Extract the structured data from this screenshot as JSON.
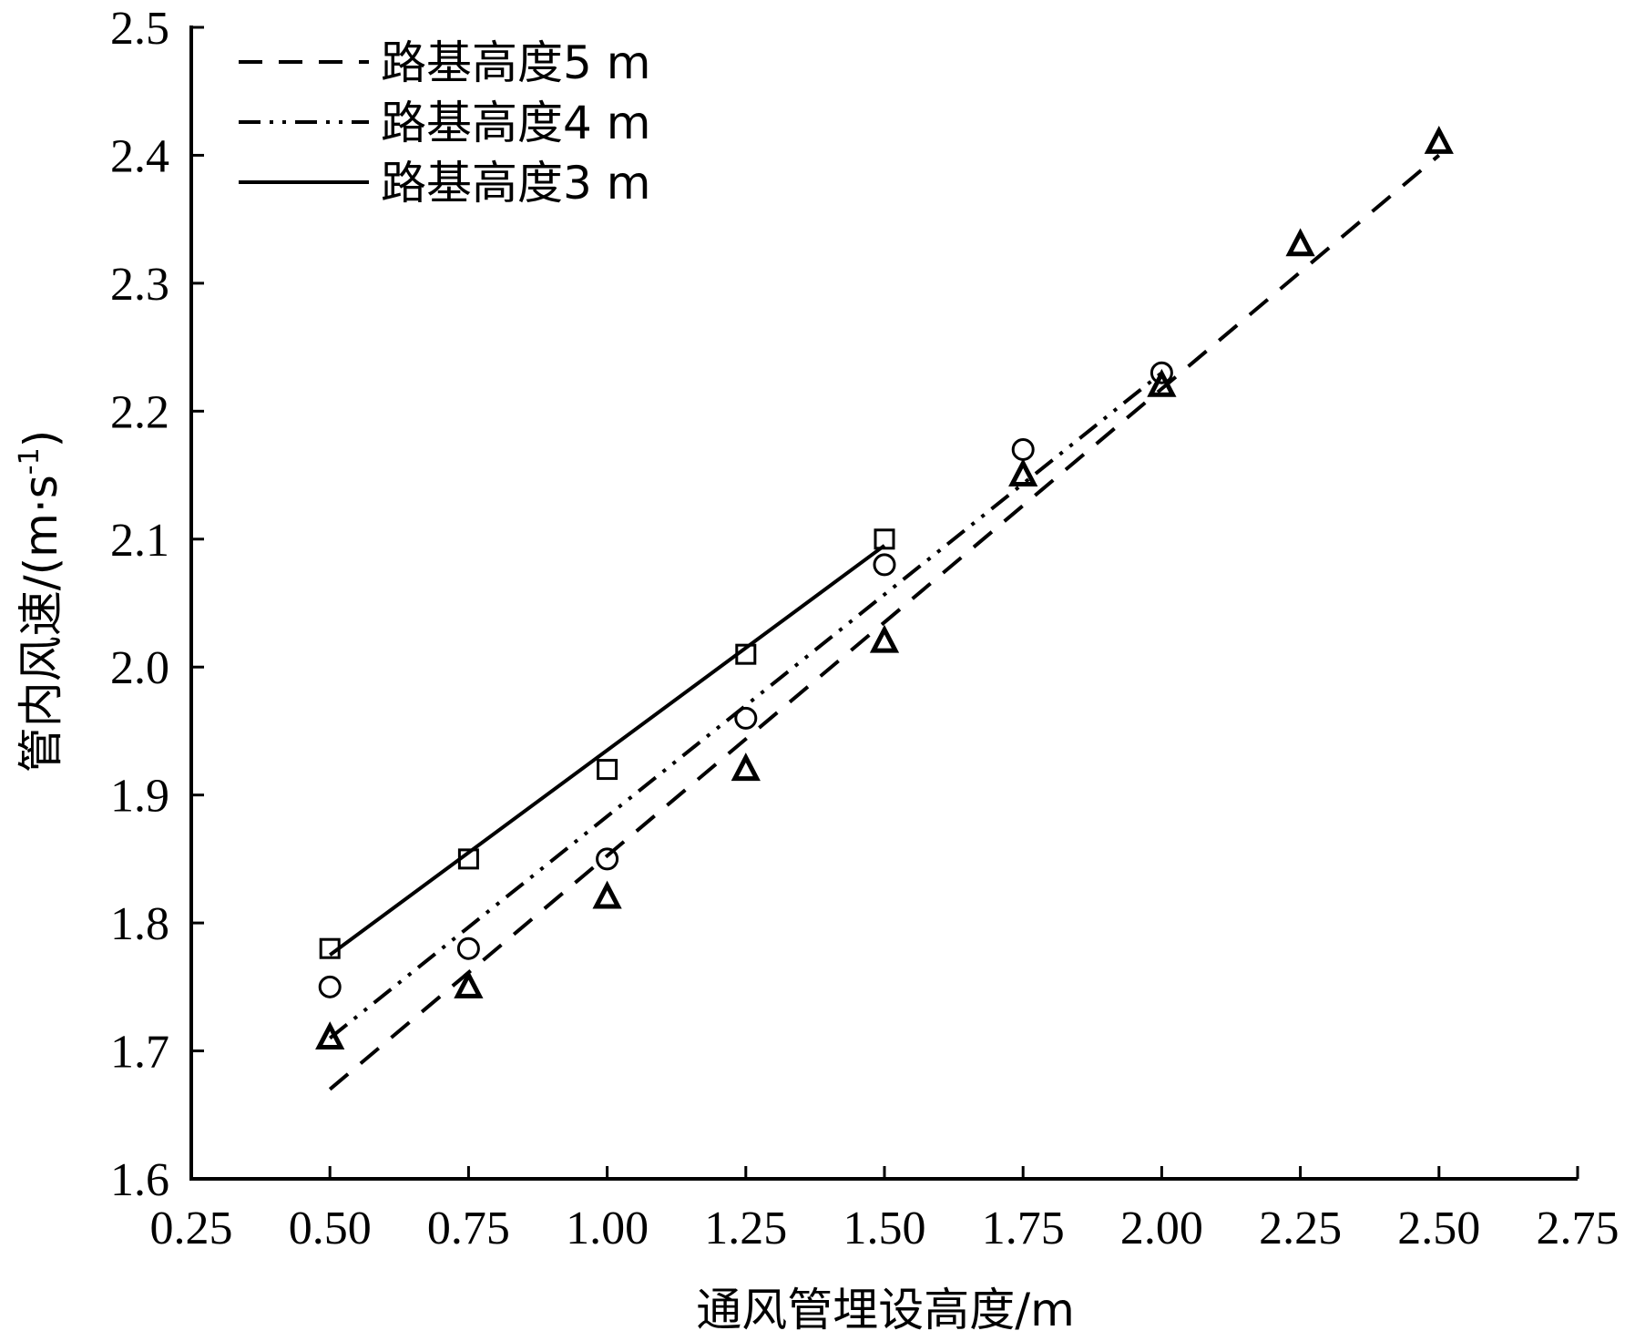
{
  "chart_data": {
    "type": "scatter",
    "xlabel": "通风管埋设高度/m",
    "ylabel": "管内风速/(m·s",
    "ylabel_sup": "-1",
    "ylabel_end": ")",
    "xlim": [
      0.25,
      2.75
    ],
    "ylim": [
      1.6,
      2.5
    ],
    "x_ticks": [
      "0.25",
      "0.50",
      "0.75",
      "1.00",
      "1.25",
      "1.50",
      "1.75",
      "2.00",
      "2.25",
      "2.50",
      "2.75"
    ],
    "y_ticks": [
      "1.6",
      "1.7",
      "1.8",
      "1.9",
      "2.0",
      "2.1",
      "2.2",
      "2.3",
      "2.4",
      "2.5"
    ],
    "grid": false,
    "legend_position": "top-left",
    "series": [
      {
        "name": "路基高度5 m",
        "line_style": "dashed",
        "marker": "triangle",
        "x": [
          0.5,
          0.75,
          1.0,
          1.25,
          1.5,
          1.75,
          2.0,
          2.25,
          2.5
        ],
        "y": [
          1.71,
          1.75,
          1.82,
          1.92,
          2.02,
          2.15,
          2.22,
          2.33,
          2.41
        ],
        "fit": [
          [
            0.5,
            1.67
          ],
          [
            2.5,
            2.4
          ]
        ]
      },
      {
        "name": "路基高度4 m",
        "line_style": "dash-dot",
        "marker": "circle",
        "x": [
          0.5,
          0.75,
          1.0,
          1.25,
          1.5,
          1.75,
          2.0
        ],
        "y": [
          1.75,
          1.78,
          1.85,
          1.96,
          2.08,
          2.17,
          2.23
        ],
        "fit": [
          [
            0.5,
            1.71
          ],
          [
            2.0,
            2.23
          ]
        ]
      },
      {
        "name": "路基高度3 m",
        "line_style": "solid",
        "marker": "square",
        "x": [
          0.5,
          0.75,
          1.0,
          1.25,
          1.5
        ],
        "y": [
          1.78,
          1.85,
          1.92,
          2.01,
          2.1
        ],
        "fit": [
          [
            0.5,
            1.775
          ],
          [
            1.5,
            2.095
          ]
        ]
      }
    ]
  }
}
